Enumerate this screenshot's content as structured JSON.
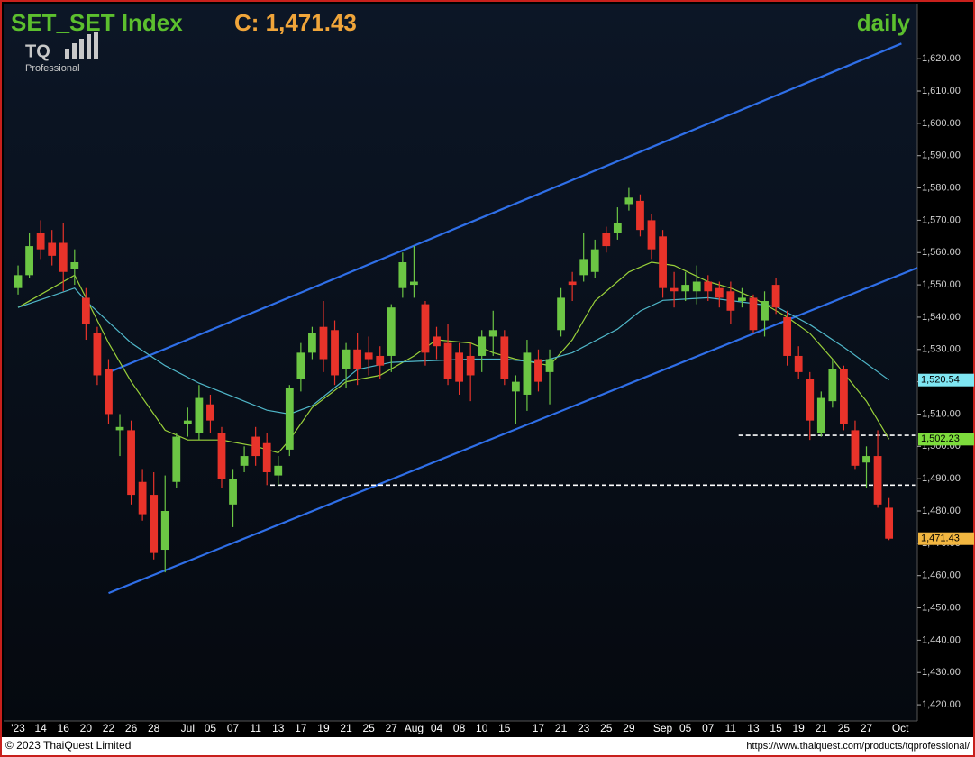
{
  "chart_data": {
    "type": "candlestick",
    "title": "SET_SET Index",
    "quote": "C: 1,471.43",
    "period": "daily",
    "logo": "TQ",
    "logo_sub": "Professional",
    "copyright": "© 2023 ThaiQuest Limited",
    "url": "https://www.thaiquest.com/products/tqprofessional/",
    "up_color": "#6cc644",
    "down_color": "#e8332a",
    "categories": [
      "'23",
      null,
      "14",
      null,
      "16",
      null,
      "20",
      null,
      "22",
      null,
      "26",
      null,
      "28",
      null,
      null,
      "Jul",
      null,
      "05",
      null,
      "07",
      null,
      "11",
      null,
      "13",
      null,
      "17",
      null,
      "19",
      null,
      "21",
      null,
      "25",
      null,
      "27",
      null,
      "Aug",
      null,
      "04",
      null,
      "08",
      null,
      "10",
      null,
      "15",
      null,
      null,
      "17",
      null,
      "21",
      null,
      "23",
      null,
      "25",
      null,
      "29",
      null,
      null,
      "Sep",
      null,
      "05",
      null,
      "07",
      null,
      "11",
      null,
      "13",
      null,
      "15",
      null,
      "19",
      null,
      "21",
      null,
      "25",
      null,
      "27",
      null,
      null,
      "Oct"
    ],
    "open": [
      1549,
      1553,
      1566,
      1563,
      1563,
      1555,
      1546,
      1535,
      1524,
      1505,
      1505,
      1489,
      1485,
      1468,
      1489,
      1507,
      1504,
      1513,
      1504,
      1482,
      1494,
      1503,
      1501,
      1491,
      1499,
      1521,
      1529,
      1537,
      1536,
      1524,
      1530,
      1529,
      1528,
      1528,
      1549,
      1550,
      1544,
      1534,
      1532,
      1529,
      1528,
      1528,
      1534,
      1534,
      1517,
      1516,
      1527,
      1523,
      1536,
      1551,
      1553,
      1554,
      1566,
      1566,
      1575,
      1576,
      1570,
      1565,
      1549,
      1548,
      1548,
      1551,
      1549,
      1548,
      1545,
      1546,
      1539,
      1550,
      1540,
      1528,
      1521,
      1504,
      1514,
      1524,
      1505,
      1495,
      1497,
      1481,
      null
    ],
    "high": [
      1556,
      1566,
      1570,
      1567,
      1569,
      1561,
      1549,
      1537,
      1527,
      1510,
      1508,
      1493,
      1492,
      1491,
      1504,
      1512,
      1519,
      1516,
      1506,
      1493,
      1500,
      1506,
      1504,
      1497,
      1519,
      1532,
      1537,
      1545,
      1539,
      1532,
      1535,
      1534,
      1531,
      1544,
      1560,
      1562,
      1545,
      1537,
      1538,
      1532,
      1532,
      1536,
      1542,
      1536,
      1522,
      1533,
      1530,
      1530,
      1549,
      1554,
      1566,
      1564,
      1568,
      1574,
      1580,
      1578,
      1572,
      1567,
      1554,
      1554,
      1556,
      1553,
      1551,
      1551,
      1549,
      1547,
      1548,
      1552,
      1542,
      1531,
      1523,
      1517,
      1527,
      1525,
      1508,
      1500,
      1505,
      1484,
      null
    ],
    "low": [
      1547,
      1552,
      1558,
      1556,
      1548,
      1550,
      1533,
      1519,
      1507,
      1497,
      1482,
      1477,
      1465,
      1461,
      1487,
      1503,
      1502,
      1504,
      1487,
      1475,
      1492,
      1494,
      1488,
      1488,
      1497,
      1517,
      1527,
      1523,
      1519,
      1518,
      1519,
      1522,
      1521,
      1523,
      1546,
      1546,
      1525,
      1527,
      1519,
      1516,
      1514,
      1523,
      1528,
      1519,
      1507,
      1511,
      1517,
      1513,
      1534,
      1545,
      1551,
      1552,
      1560,
      1564,
      1573,
      1565,
      1558,
      1546,
      1543,
      1545,
      1544,
      1545,
      1543,
      1538,
      1543,
      1535,
      1534,
      1541,
      1525,
      1521,
      1502,
      1503,
      1512,
      1505,
      1493,
      1487,
      1481,
      1471,
      null
    ],
    "close": [
      1553,
      1562,
      1561,
      1559,
      1554,
      1557,
      1538,
      1522,
      1510,
      1506,
      1485,
      1479,
      1467,
      1480,
      1503,
      1508,
      1515,
      1508,
      1490,
      1490,
      1497,
      1497,
      1492,
      1494,
      1518,
      1529,
      1535,
      1527,
      1522,
      1530,
      1524,
      1527,
      1525,
      1543,
      1557,
      1551,
      1529,
      1531,
      1521,
      1520,
      1522,
      1534,
      1536,
      1521,
      1520,
      1529,
      1520,
      1527,
      1546,
      1550,
      1558,
      1561,
      1562,
      1569,
      1577,
      1567,
      1561,
      1549,
      1548,
      1550,
      1551,
      1548,
      1546,
      1542,
      1546,
      1536,
      1545,
      1543,
      1528,
      1523,
      1508,
      1515,
      1524,
      1507,
      1494,
      1497,
      1482,
      1471.43,
      null
    ],
    "last_label": "1,471.43",
    "last_color": "#f2b640",
    "lines": [
      {
        "color": "#9ad13a",
        "label_color": "#7ddc3c",
        "last_label": "1,502.23",
        "x": [
          0,
          5,
          8,
          10,
          13,
          15,
          18,
          21,
          23,
          24,
          26,
          29,
          32,
          35,
          37,
          40,
          42,
          44,
          47,
          49,
          51,
          54,
          56,
          58,
          61,
          63,
          65,
          68,
          70,
          72,
          75,
          77
        ],
        "values": [
          1543,
          1553,
          1532,
          1520,
          1505,
          1502,
          1502,
          1500,
          1498,
          1502,
          1512,
          1520,
          1522,
          1528,
          1533,
          1532,
          1529,
          1527,
          1525,
          1533,
          1545,
          1554,
          1557,
          1556,
          1551,
          1549,
          1546,
          1540,
          1535,
          1527,
          1514,
          1502.23
        ]
      },
      {
        "color": "#4fb6c8",
        "label_color": "#7fe6f2",
        "last_label": "1,520.54",
        "x": [
          0,
          5,
          6,
          10,
          13,
          16,
          19,
          22,
          24,
          26,
          30,
          33,
          37,
          40,
          43,
          46,
          49,
          53,
          55,
          57,
          61,
          64,
          67,
          70,
          73,
          77
        ],
        "values": [
          1543,
          1549,
          1545,
          1532,
          1525,
          1519.6,
          1515.4,
          1511.2,
          1510,
          1512.6,
          1523.8,
          1526,
          1526.6,
          1527,
          1527,
          1526,
          1529,
          1536.3,
          1541.9,
          1545.2,
          1546,
          1544.7,
          1543.3,
          1537.7,
          1530.7,
          1520.54
        ]
      }
    ],
    "trendlines": [
      {
        "color": "#2f6fe8",
        "x": [
          8,
          78.1
        ],
        "values": [
          1522.9,
          1624.7
        ]
      },
      {
        "color": "#2f6fe8",
        "x": [
          8,
          79.5
        ],
        "values": [
          1454.6,
          1555.3
        ]
      }
    ],
    "levels": [
      {
        "color": "#ffffff",
        "x": [
          22.3,
          79.3
        ],
        "values": [
          1488,
          1488
        ]
      },
      {
        "color": "#ffffff",
        "x": [
          63.7,
          79.3
        ],
        "values": [
          1503.4,
          1503.4
        ]
      }
    ],
    "xlim": [
      -0.8,
      79.5
    ],
    "ylim": [
      1415,
      1634
    ],
    "yticks": [
      {
        "value": 1420,
        "label": "1,420.00"
      },
      {
        "value": 1430,
        "label": "1,430.00"
      },
      {
        "value": 1440,
        "label": "1,440.00"
      },
      {
        "value": 1450,
        "label": "1,450.00"
      },
      {
        "value": 1460,
        "label": "1,460.00"
      },
      {
        "value": 1470,
        "label": "1,470.00"
      },
      {
        "value": 1480,
        "label": "1,480.00"
      },
      {
        "value": 1490,
        "label": "1,490.00"
      },
      {
        "value": 1500,
        "label": "1,500.00"
      },
      {
        "value": 1510,
        "label": "1,510.00"
      },
      {
        "value": 1520,
        "label": "1,520.00"
      },
      {
        "value": 1530,
        "label": "1,530.00"
      },
      {
        "value": 1540,
        "label": "1,540.00"
      },
      {
        "value": 1550,
        "label": "1,550.00"
      },
      {
        "value": 1560,
        "label": "1,560.00"
      },
      {
        "value": 1570,
        "label": "1,570.00"
      },
      {
        "value": 1580,
        "label": "1,580.00"
      },
      {
        "value": 1590,
        "label": "1,590.00"
      },
      {
        "value": 1600,
        "label": "1,600.00"
      },
      {
        "value": 1610,
        "label": "1,610.00"
      },
      {
        "value": 1620,
        "label": "1,620.00"
      }
    ]
  }
}
